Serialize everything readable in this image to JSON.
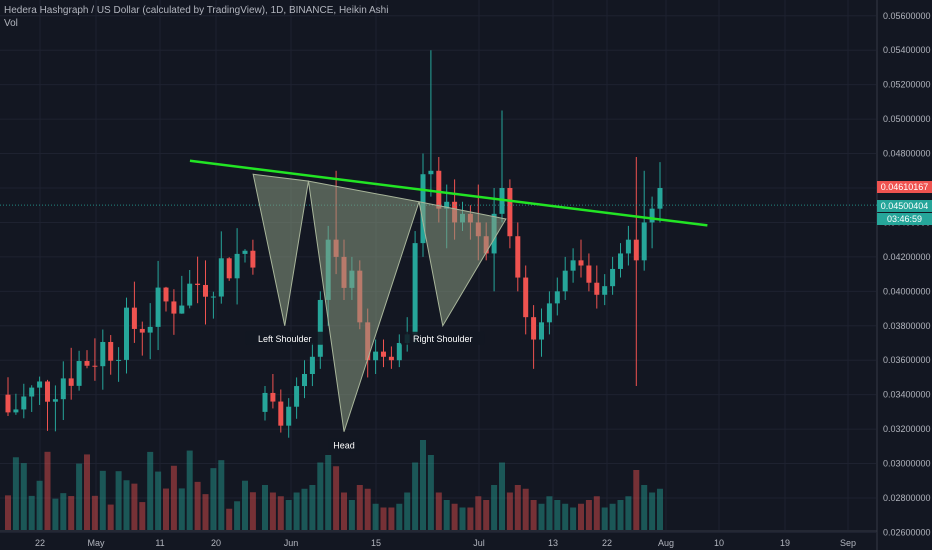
{
  "header": {
    "title": "Hedera Hashgraph / US Dollar (calculated by TradingView), 1D, BINANCE, Heikin Ashi",
    "indicator": "Vol"
  },
  "colors": {
    "bg": "#131722",
    "up": "#26a69a",
    "down": "#ef5350",
    "trend": "#22e524",
    "pattern": "#8a9a82"
  },
  "price_tags": {
    "last": "0.04500404",
    "countdown": "03:46:59",
    "high_line": "0.04610167"
  },
  "chart_data": {
    "type": "candlestick",
    "title": "",
    "y_ticks": [
      "0.05600000",
      "0.05400000",
      "0.05200000",
      "0.05000000",
      "0.04800000",
      "0.04600000",
      "0.04400000",
      "0.04200000",
      "0.04000000",
      "0.03800000",
      "0.03600000",
      "0.03400000",
      "0.03200000",
      "0.03000000",
      "0.02800000",
      "0.02600000"
    ],
    "x_ticks": [
      "22",
      "May",
      "11",
      "20",
      "Jun",
      "15",
      "Jul",
      "13",
      "22",
      "Aug",
      "10",
      "19",
      "Sep"
    ],
    "ylim": [
      0.0262,
      0.0568
    ],
    "candles": [
      {
        "o": 0.033,
        "h": 0.0345,
        "l": 0.0325,
        "c": 0.0341,
        "v": 0.6
      },
      {
        "o": 0.0341,
        "h": 0.0352,
        "l": 0.0332,
        "c": 0.0336,
        "v": 0.5
      },
      {
        "o": 0.0336,
        "h": 0.0343,
        "l": 0.0318,
        "c": 0.0322,
        "v": 0.45
      },
      {
        "o": 0.0322,
        "h": 0.0338,
        "l": 0.0315,
        "c": 0.0333,
        "v": 0.4
      },
      {
        "o": 0.0333,
        "h": 0.035,
        "l": 0.0326,
        "c": 0.0345,
        "v": 0.5
      },
      {
        "o": 0.0345,
        "h": 0.036,
        "l": 0.0338,
        "c": 0.0352,
        "v": 0.55
      },
      {
        "o": 0.0352,
        "h": 0.037,
        "l": 0.0345,
        "c": 0.0362,
        "v": 0.6
      },
      {
        "o": 0.0362,
        "h": 0.04,
        "l": 0.0355,
        "c": 0.0395,
        "v": 0.9
      },
      {
        "o": 0.0395,
        "h": 0.0438,
        "l": 0.038,
        "c": 0.043,
        "v": 1.0
      },
      {
        "o": 0.043,
        "h": 0.047,
        "l": 0.041,
        "c": 0.042,
        "v": 0.85
      },
      {
        "o": 0.042,
        "h": 0.043,
        "l": 0.0395,
        "c": 0.0402,
        "v": 0.5
      },
      {
        "o": 0.0402,
        "h": 0.042,
        "l": 0.0395,
        "c": 0.0412,
        "v": 0.4
      },
      {
        "o": 0.0412,
        "h": 0.0418,
        "l": 0.0378,
        "c": 0.0382,
        "v": 0.6
      },
      {
        "o": 0.0382,
        "h": 0.039,
        "l": 0.035,
        "c": 0.036,
        "v": 0.55
      },
      {
        "o": 0.036,
        "h": 0.0372,
        "l": 0.0352,
        "c": 0.0365,
        "v": 0.35
      },
      {
        "o": 0.0365,
        "h": 0.0372,
        "l": 0.0356,
        "c": 0.0362,
        "v": 0.3
      },
      {
        "o": 0.0362,
        "h": 0.0368,
        "l": 0.0355,
        "c": 0.036,
        "v": 0.3
      },
      {
        "o": 0.036,
        "h": 0.0375,
        "l": 0.0356,
        "c": 0.037,
        "v": 0.35
      },
      {
        "o": 0.037,
        "h": 0.0385,
        "l": 0.0365,
        "c": 0.0375,
        "v": 0.5
      },
      {
        "o": 0.0375,
        "h": 0.0435,
        "l": 0.037,
        "c": 0.0428,
        "v": 0.9
      },
      {
        "o": 0.0428,
        "h": 0.048,
        "l": 0.042,
        "c": 0.0468,
        "v": 1.2
      },
      {
        "o": 0.0468,
        "h": 0.054,
        "l": 0.0455,
        "c": 0.047,
        "v": 1.0
      },
      {
        "o": 0.047,
        "h": 0.0478,
        "l": 0.044,
        "c": 0.0448,
        "v": 0.5
      },
      {
        "o": 0.0448,
        "h": 0.0462,
        "l": 0.0425,
        "c": 0.0452,
        "v": 0.4
      },
      {
        "o": 0.0452,
        "h": 0.0465,
        "l": 0.043,
        "c": 0.044,
        "v": 0.35
      },
      {
        "o": 0.044,
        "h": 0.0452,
        "l": 0.0435,
        "c": 0.0445,
        "v": 0.3
      },
      {
        "o": 0.0445,
        "h": 0.045,
        "l": 0.043,
        "c": 0.044,
        "v": 0.3
      },
      {
        "o": 0.044,
        "h": 0.0462,
        "l": 0.0418,
        "c": 0.0432,
        "v": 0.45
      },
      {
        "o": 0.0432,
        "h": 0.044,
        "l": 0.0418,
        "c": 0.0422,
        "v": 0.4
      },
      {
        "o": 0.0422,
        "h": 0.046,
        "l": 0.04,
        "c": 0.0445,
        "v": 0.6
      },
      {
        "o": 0.0445,
        "h": 0.0505,
        "l": 0.044,
        "c": 0.046,
        "v": 0.9
      },
      {
        "o": 0.046,
        "h": 0.0465,
        "l": 0.0425,
        "c": 0.0432,
        "v": 0.5
      },
      {
        "o": 0.0432,
        "h": 0.044,
        "l": 0.04,
        "c": 0.0408,
        "v": 0.6
      },
      {
        "o": 0.0408,
        "h": 0.0415,
        "l": 0.0375,
        "c": 0.0385,
        "v": 0.55
      },
      {
        "o": 0.0385,
        "h": 0.0392,
        "l": 0.0355,
        "c": 0.0372,
        "v": 0.4
      },
      {
        "o": 0.0372,
        "h": 0.039,
        "l": 0.0362,
        "c": 0.0382,
        "v": 0.35
      },
      {
        "o": 0.0382,
        "h": 0.04,
        "l": 0.0375,
        "c": 0.0393,
        "v": 0.45
      },
      {
        "o": 0.0393,
        "h": 0.0408,
        "l": 0.0386,
        "c": 0.04,
        "v": 0.4
      },
      {
        "o": 0.04,
        "h": 0.042,
        "l": 0.0395,
        "c": 0.0412,
        "v": 0.35
      },
      {
        "o": 0.0412,
        "h": 0.0425,
        "l": 0.0405,
        "c": 0.0418,
        "v": 0.3
      },
      {
        "o": 0.0418,
        "h": 0.043,
        "l": 0.0408,
        "c": 0.0415,
        "v": 0.35
      },
      {
        "o": 0.0415,
        "h": 0.0422,
        "l": 0.04,
        "c": 0.0405,
        "v": 0.4
      },
      {
        "o": 0.0405,
        "h": 0.0415,
        "l": 0.039,
        "c": 0.0398,
        "v": 0.45
      },
      {
        "o": 0.0398,
        "h": 0.041,
        "l": 0.0392,
        "c": 0.0403,
        "v": 0.3
      },
      {
        "o": 0.0403,
        "h": 0.042,
        "l": 0.0398,
        "c": 0.0413,
        "v": 0.35
      },
      {
        "o": 0.0413,
        "h": 0.0428,
        "l": 0.0408,
        "c": 0.0422,
        "v": 0.4
      },
      {
        "o": 0.0422,
        "h": 0.0438,
        "l": 0.0415,
        "c": 0.043,
        "v": 0.45
      },
      {
        "o": 0.043,
        "h": 0.0478,
        "l": 0.0345,
        "c": 0.0418,
        "v": 0.8
      },
      {
        "o": 0.0418,
        "h": 0.047,
        "l": 0.0412,
        "c": 0.044,
        "v": 0.6
      },
      {
        "o": 0.044,
        "h": 0.0455,
        "l": 0.0425,
        "c": 0.0448,
        "v": 0.5
      },
      {
        "o": 0.0448,
        "h": 0.0475,
        "l": 0.044,
        "c": 0.046,
        "v": 0.55
      }
    ]
  },
  "trendline": {
    "from": {
      "i": -9.5,
      "p": 0.04758
    },
    "to": {
      "i": 56,
      "p": 0.04383
    }
  },
  "pattern": {
    "points": [
      {
        "i": -1.5,
        "p": 0.0468
      },
      {
        "i": 2.5,
        "p": 0.038
      },
      {
        "i": 5.5,
        "p": 0.0464
      },
      {
        "i": 10,
        "p": 0.03185
      },
      {
        "i": 19.5,
        "p": 0.0452
      },
      {
        "i": 22.5,
        "p": 0.038
      },
      {
        "i": 30.5,
        "p": 0.0442
      }
    ]
  },
  "annotations": [
    {
      "text": "Left Shoulder",
      "i": 2.5,
      "p": 0.03765
    },
    {
      "text": "Head",
      "i": 10,
      "p": 0.03145
    },
    {
      "text": "Right Shoulder",
      "i": 22.5,
      "p": 0.03765
    }
  ]
}
